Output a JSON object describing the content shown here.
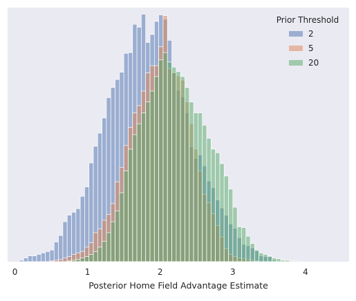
{
  "chart_data": {
    "type": "histogram",
    "xlabel": "Posterior Home Field Advantage Estimate",
    "ylabel": "",
    "xlim": [
      -0.1,
      4.6
    ],
    "xticks": [
      0,
      1,
      2,
      3,
      4
    ],
    "ylim": [
      0,
      350
    ],
    "yticks_visible": false,
    "grid": false,
    "background": "#EAEAF2",
    "legend": {
      "title": "Prior Threshold",
      "position": "top-right"
    },
    "bin_width": 0.06,
    "bin_start": 0.06,
    "series": [
      {
        "name": "2",
        "color": "#4C72B0",
        "values": [
          2,
          5,
          8,
          8,
          10,
          12,
          14,
          16,
          27,
          36,
          55,
          64,
          68,
          73,
          90,
          103,
          136,
          159,
          177,
          198,
          226,
          240,
          251,
          261,
          287,
          288,
          327,
          323,
          341,
          302,
          313,
          331,
          340,
          334,
          305,
          260,
          236,
          227,
          205,
          158,
          142,
          147,
          132,
          111,
          102,
          85,
          74,
          64,
          52,
          46,
          33,
          24,
          22,
          19,
          15,
          8,
          7,
          8,
          2,
          1,
          1,
          1,
          1,
          1
        ]
      },
      {
        "name": "5",
        "color": "#DD8452",
        "values": [
          0,
          0,
          0,
          0,
          0,
          0,
          0,
          1,
          2,
          3,
          5,
          7,
          10,
          12,
          14,
          20,
          26,
          40,
          45,
          57,
          65,
          80,
          110,
          130,
          160,
          185,
          205,
          215,
          235,
          260,
          270,
          270,
          296,
          339,
          266,
          260,
          256,
          250,
          220,
          190,
          155,
          125,
          93,
          81,
          66,
          50,
          34,
          18,
          10,
          7,
          5,
          4,
          3,
          2,
          1,
          0,
          0,
          0,
          0,
          0,
          0,
          0,
          0,
          0
        ]
      },
      {
        "name": "20",
        "color": "#55A868",
        "values": [
          0,
          0,
          0,
          0,
          0,
          0,
          0,
          0,
          0,
          0,
          0,
          1,
          2,
          3,
          5,
          7,
          10,
          14,
          20,
          28,
          40,
          55,
          70,
          95,
          125,
          155,
          175,
          190,
          205,
          220,
          235,
          255,
          278,
          288,
          275,
          268,
          262,
          255,
          240,
          220,
          205,
          205,
          188,
          170,
          155,
          150,
          135,
          118,
          100,
          75,
          48,
          47,
          35,
          25,
          16,
          12,
          10,
          7,
          5,
          4,
          2,
          2,
          1,
          1
        ]
      }
    ]
  }
}
